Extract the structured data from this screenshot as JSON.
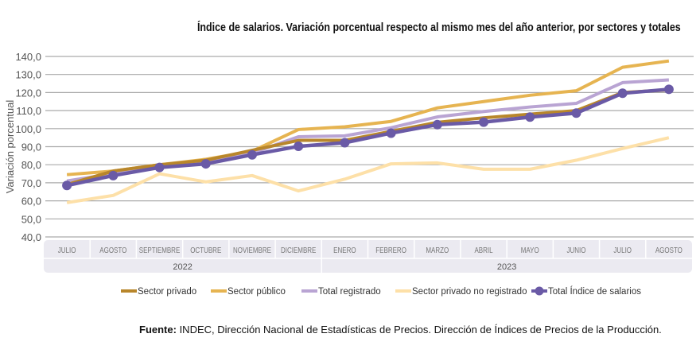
{
  "chart_data": {
    "type": "line",
    "title": "Índice de salarios. Variación porcentual respecto al mismo mes del año anterior, por sectores y totales",
    "ylabel": "Variación porcentual",
    "ylim": [
      40,
      140
    ],
    "yticks": [
      "40,0",
      "50,0",
      "60,0",
      "70,0",
      "80,0",
      "90,0",
      "100,0",
      "110,0",
      "120,0",
      "130,0",
      "140,0"
    ],
    "grid": true,
    "legend": "bottom",
    "categories": [
      "JULIO",
      "AGOSTO",
      "SEPTIEMBRE",
      "OCTUBRE",
      "NOVIEMBRE",
      "DICIEMBRE",
      "ENERO",
      "FEBRERO",
      "MARZO",
      "ABRIL",
      "MAYO",
      "JUNIO",
      "JULIO",
      "AGOSTO"
    ],
    "years": [
      {
        "label": "2022",
        "span": 6
      },
      {
        "label": "2023",
        "span": 8
      }
    ],
    "series": [
      {
        "name": "Sector privado",
        "color": "#b8862b",
        "values": [
          69,
          76.5,
          80,
          82.5,
          88,
          93.5,
          93.5,
          98.5,
          103.5,
          106,
          108,
          110,
          120,
          121.5
        ]
      },
      {
        "name": "Sector público",
        "color": "#e6b451",
        "values": [
          74.5,
          76.5,
          80,
          83,
          87.5,
          99.5,
          101,
          104,
          111.5,
          115,
          118.5,
          121,
          134,
          137.5
        ]
      },
      {
        "name": "Total registrado",
        "color": "#b9a4d3",
        "values": [
          71,
          75,
          79,
          81,
          86.5,
          95.5,
          96,
          100.5,
          106.5,
          109.5,
          112,
          114,
          125.5,
          127
        ]
      },
      {
        "name": "Sector privado no registrado",
        "color": "#fde0a8",
        "values": [
          59,
          63,
          75,
          70.5,
          74,
          65.5,
          72,
          80.5,
          81,
          77.5,
          77.5,
          82.5,
          89,
          95
        ]
      },
      {
        "name": "Total Índice de salarios",
        "color": "#6a5aa6",
        "markers": true,
        "values": [
          68.5,
          74,
          78.5,
          80.5,
          85.5,
          90.2,
          92.2,
          97.5,
          102.2,
          103.6,
          106.4,
          108.6,
          119.6,
          121.8
        ]
      }
    ]
  },
  "source": {
    "label": "Fuente:",
    "text": " INDEC, Dirección Nacional de Estadísticas de Precios. Dirección de Índices de Precios de la Producción."
  }
}
